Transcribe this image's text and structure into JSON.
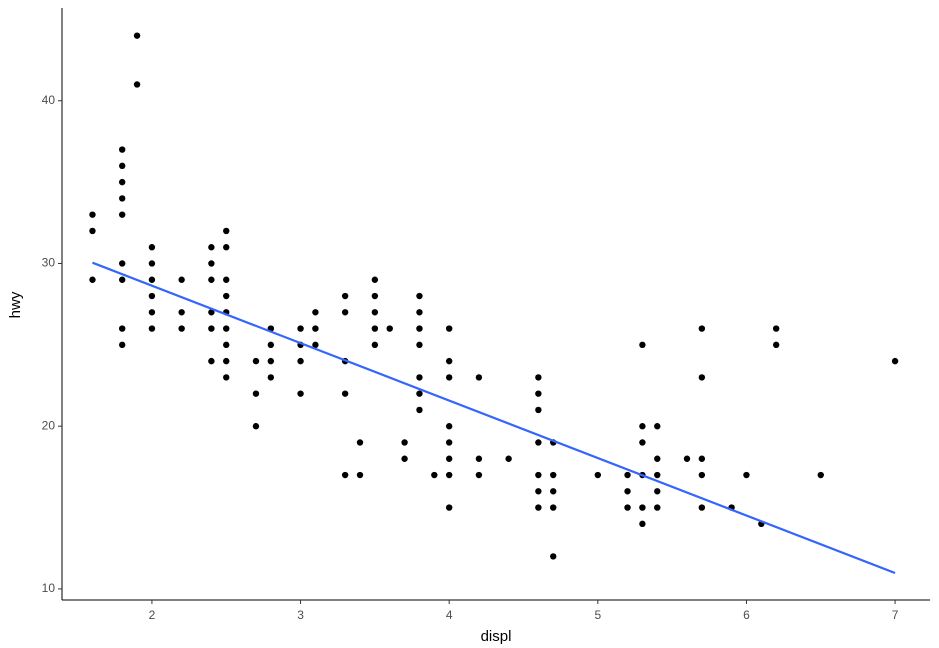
{
  "chart_data": {
    "type": "scatter",
    "x_label": "displ",
    "y_label": "hwy",
    "x": [
      1.6,
      1.6,
      1.6,
      1.8,
      1.8,
      1.8,
      1.8,
      1.8,
      1.8,
      1.8,
      1.8,
      1.8,
      1.9,
      1.9,
      2.0,
      2.0,
      2.0,
      2.0,
      2.0,
      2.0,
      2.2,
      2.2,
      2.2,
      2.4,
      2.4,
      2.4,
      2.4,
      2.4,
      2.4,
      2.5,
      2.5,
      2.5,
      2.5,
      2.5,
      2.5,
      2.5,
      2.5,
      2.5,
      2.7,
      2.7,
      2.7,
      2.8,
      2.8,
      2.8,
      2.8,
      3.0,
      3.0,
      3.0,
      3.0,
      3.1,
      3.1,
      3.1,
      3.3,
      3.3,
      3.3,
      3.3,
      3.3,
      3.4,
      3.4,
      3.5,
      3.5,
      3.5,
      3.5,
      3.5,
      3.6,
      3.7,
      3.7,
      3.8,
      3.8,
      3.8,
      3.8,
      3.8,
      3.8,
      3.8,
      3.9,
      4.0,
      4.0,
      4.0,
      4.0,
      4.0,
      4.0,
      4.0,
      4.0,
      4.2,
      4.2,
      4.2,
      4.4,
      4.6,
      4.6,
      4.6,
      4.6,
      4.6,
      4.6,
      4.6,
      4.7,
      4.7,
      4.7,
      4.7,
      4.7,
      5.0,
      5.2,
      5.2,
      5.2,
      5.3,
      5.3,
      5.3,
      5.3,
      5.3,
      5.3,
      5.4,
      5.4,
      5.4,
      5.4,
      5.4,
      5.6,
      5.7,
      5.7,
      5.7,
      5.7,
      5.7,
      5.9,
      6.0,
      6.1,
      6.2,
      6.2,
      6.5,
      7.0
    ],
    "values": [
      33,
      32,
      29,
      37,
      36,
      35,
      34,
      33,
      30,
      29,
      26,
      25,
      44,
      41,
      31,
      30,
      29,
      28,
      27,
      26,
      29,
      27,
      26,
      31,
      30,
      29,
      27,
      26,
      24,
      32,
      31,
      29,
      28,
      27,
      26,
      25,
      24,
      23,
      24,
      22,
      20,
      26,
      25,
      24,
      23,
      26,
      25,
      24,
      22,
      27,
      26,
      25,
      28,
      27,
      24,
      22,
      17,
      19,
      17,
      29,
      28,
      27,
      26,
      25,
      26,
      19,
      18,
      28,
      27,
      26,
      25,
      23,
      22,
      21,
      17,
      26,
      24,
      23,
      20,
      19,
      18,
      17,
      15,
      23,
      18,
      17,
      18,
      23,
      22,
      21,
      19,
      17,
      16,
      15,
      19,
      17,
      16,
      15,
      12,
      17,
      17,
      16,
      15,
      25,
      20,
      19,
      17,
      15,
      14,
      20,
      18,
      17,
      16,
      15,
      18,
      26,
      23,
      18,
      17,
      15,
      15,
      17,
      14,
      26,
      25,
      17,
      24
    ],
    "color": "#000000",
    "fit": {
      "x": [
        1.6,
        7.0
      ],
      "values": [
        30.05,
        10.98
      ],
      "color": "#3366ff"
    },
    "xlim": [
      1.395,
      7.235
    ],
    "ylim": [
      9.32,
      45.7
    ],
    "xticks": [
      2,
      3,
      4,
      5,
      6,
      7
    ],
    "yticks": [
      10,
      20,
      30,
      40
    ],
    "grid": false
  }
}
